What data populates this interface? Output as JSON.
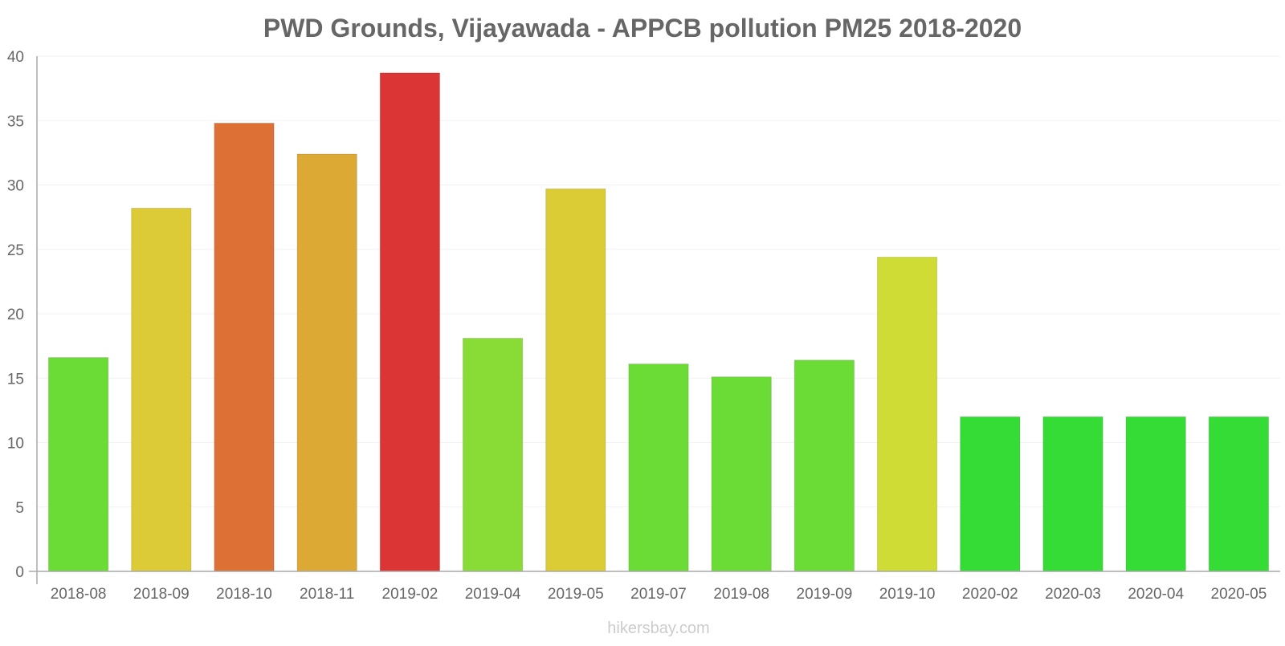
{
  "chart_data": {
    "type": "bar",
    "title": "PWD Grounds, Vijayawada - APPCB pollution PM25 2018-2020",
    "xlabel": "",
    "ylabel": "",
    "ylim": [
      0,
      40
    ],
    "yticks": [
      0,
      5,
      10,
      15,
      20,
      25,
      30,
      35,
      40
    ],
    "grid": true,
    "categories": [
      "2018-08",
      "2018-09",
      "2018-10",
      "2018-11",
      "2019-02",
      "2019-04",
      "2019-05",
      "2019-07",
      "2019-08",
      "2019-09",
      "2019-10",
      "2020-02",
      "2020-03",
      "2020-04",
      "2020-05"
    ],
    "values": [
      16.6,
      28.2,
      34.8,
      32.4,
      38.7,
      18.1,
      29.7,
      16.1,
      15.1,
      16.4,
      24.4,
      12,
      12,
      12,
      12
    ],
    "colors": [
      "#6bdc36",
      "#dccb36",
      "#dd7035",
      "#dca935",
      "#db3535",
      "#88dc35",
      "#dbcb35",
      "#6bdc36",
      "#6bdc36",
      "#6bdc36",
      "#cfdc35",
      "#35dc35",
      "#35dc35",
      "#35dc35",
      "#35dc35"
    ],
    "axis_color": "#aaaaaa",
    "grid_color": "#f2f2f2"
  },
  "watermark": "hikersbay.com"
}
